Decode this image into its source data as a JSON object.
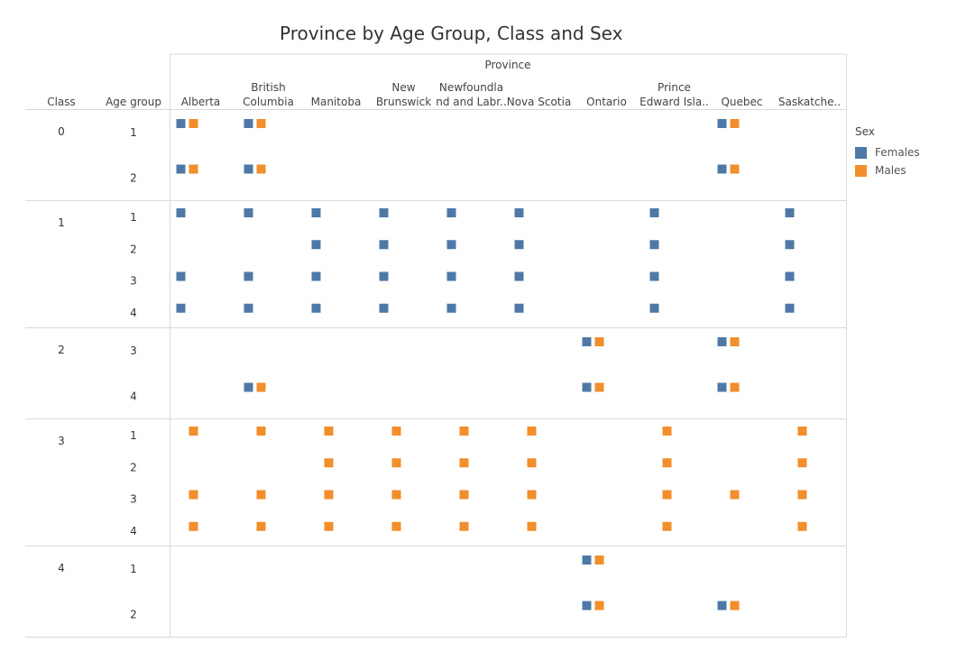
{
  "title": "Province by Age Group, Class and Sex",
  "colors": {
    "Females": "#4e79a7",
    "Males": "#f28e2b"
  },
  "legend": {
    "title": "Sex",
    "items": [
      "Females",
      "Males"
    ]
  },
  "chart_data": {
    "type": "scatter",
    "title": "Province by Age Group, Class and Sex",
    "column_header": "Province",
    "row_headers": [
      "Class",
      "Age group"
    ],
    "provinces": [
      [
        "Alberta"
      ],
      [
        "British",
        "Columbia"
      ],
      [
        "Manitoba"
      ],
      [
        "New",
        "Brunswick"
      ],
      [
        "Newfoundla",
        "nd and Labr.."
      ],
      [
        "Nova Scotia"
      ],
      [
        "Ontario"
      ],
      [
        "Prince",
        "Edward Isla.."
      ],
      [
        "Quebec"
      ],
      [
        "Saskatche.."
      ]
    ],
    "classes": [
      {
        "class": "0",
        "age_groups": [
          "1",
          "2"
        ],
        "points": [
          {
            "age": "1",
            "province": 0,
            "sex": "Females"
          },
          {
            "age": "1",
            "province": 0,
            "sex": "Males"
          },
          {
            "age": "1",
            "province": 1,
            "sex": "Females"
          },
          {
            "age": "1",
            "province": 1,
            "sex": "Males"
          },
          {
            "age": "1",
            "province": 8,
            "sex": "Females"
          },
          {
            "age": "1",
            "province": 8,
            "sex": "Males"
          },
          {
            "age": "2",
            "province": 0,
            "sex": "Females"
          },
          {
            "age": "2",
            "province": 0,
            "sex": "Males"
          },
          {
            "age": "2",
            "province": 1,
            "sex": "Females"
          },
          {
            "age": "2",
            "province": 1,
            "sex": "Males"
          },
          {
            "age": "2",
            "province": 8,
            "sex": "Females"
          },
          {
            "age": "2",
            "province": 8,
            "sex": "Males"
          }
        ]
      },
      {
        "class": "1",
        "age_groups": [
          "1",
          "2",
          "3",
          "4"
        ],
        "points": [
          {
            "age": "1",
            "province": 0,
            "sex": "Females"
          },
          {
            "age": "1",
            "province": 1,
            "sex": "Females"
          },
          {
            "age": "1",
            "province": 2,
            "sex": "Females"
          },
          {
            "age": "1",
            "province": 3,
            "sex": "Females"
          },
          {
            "age": "1",
            "province": 4,
            "sex": "Females"
          },
          {
            "age": "1",
            "province": 5,
            "sex": "Females"
          },
          {
            "age": "1",
            "province": 7,
            "sex": "Females"
          },
          {
            "age": "1",
            "province": 9,
            "sex": "Females"
          },
          {
            "age": "2",
            "province": 2,
            "sex": "Females"
          },
          {
            "age": "2",
            "province": 3,
            "sex": "Females"
          },
          {
            "age": "2",
            "province": 4,
            "sex": "Females"
          },
          {
            "age": "2",
            "province": 5,
            "sex": "Females"
          },
          {
            "age": "2",
            "province": 7,
            "sex": "Females"
          },
          {
            "age": "2",
            "province": 9,
            "sex": "Females"
          },
          {
            "age": "3",
            "province": 0,
            "sex": "Females"
          },
          {
            "age": "3",
            "province": 1,
            "sex": "Females"
          },
          {
            "age": "3",
            "province": 2,
            "sex": "Females"
          },
          {
            "age": "3",
            "province": 3,
            "sex": "Females"
          },
          {
            "age": "3",
            "province": 4,
            "sex": "Females"
          },
          {
            "age": "3",
            "province": 5,
            "sex": "Females"
          },
          {
            "age": "3",
            "province": 7,
            "sex": "Females"
          },
          {
            "age": "3",
            "province": 9,
            "sex": "Females"
          },
          {
            "age": "4",
            "province": 0,
            "sex": "Females"
          },
          {
            "age": "4",
            "province": 1,
            "sex": "Females"
          },
          {
            "age": "4",
            "province": 2,
            "sex": "Females"
          },
          {
            "age": "4",
            "province": 3,
            "sex": "Females"
          },
          {
            "age": "4",
            "province": 4,
            "sex": "Females"
          },
          {
            "age": "4",
            "province": 5,
            "sex": "Females"
          },
          {
            "age": "4",
            "province": 7,
            "sex": "Females"
          },
          {
            "age": "4",
            "province": 9,
            "sex": "Females"
          }
        ]
      },
      {
        "class": "2",
        "age_groups": [
          "3",
          "4"
        ],
        "points": [
          {
            "age": "3",
            "province": 6,
            "sex": "Females"
          },
          {
            "age": "3",
            "province": 6,
            "sex": "Males"
          },
          {
            "age": "3",
            "province": 8,
            "sex": "Females"
          },
          {
            "age": "3",
            "province": 8,
            "sex": "Males"
          },
          {
            "age": "4",
            "province": 1,
            "sex": "Females"
          },
          {
            "age": "4",
            "province": 1,
            "sex": "Males"
          },
          {
            "age": "4",
            "province": 6,
            "sex": "Females"
          },
          {
            "age": "4",
            "province": 6,
            "sex": "Males"
          },
          {
            "age": "4",
            "province": 8,
            "sex": "Females"
          },
          {
            "age": "4",
            "province": 8,
            "sex": "Males"
          }
        ]
      },
      {
        "class": "3",
        "age_groups": [
          "1",
          "2",
          "3",
          "4"
        ],
        "points": [
          {
            "age": "1",
            "province": 0,
            "sex": "Males"
          },
          {
            "age": "1",
            "province": 1,
            "sex": "Males"
          },
          {
            "age": "1",
            "province": 2,
            "sex": "Males"
          },
          {
            "age": "1",
            "province": 3,
            "sex": "Males"
          },
          {
            "age": "1",
            "province": 4,
            "sex": "Males"
          },
          {
            "age": "1",
            "province": 5,
            "sex": "Males"
          },
          {
            "age": "1",
            "province": 7,
            "sex": "Males"
          },
          {
            "age": "1",
            "province": 9,
            "sex": "Males"
          },
          {
            "age": "2",
            "province": 2,
            "sex": "Males"
          },
          {
            "age": "2",
            "province": 3,
            "sex": "Males"
          },
          {
            "age": "2",
            "province": 4,
            "sex": "Males"
          },
          {
            "age": "2",
            "province": 5,
            "sex": "Males"
          },
          {
            "age": "2",
            "province": 7,
            "sex": "Males"
          },
          {
            "age": "2",
            "province": 9,
            "sex": "Males"
          },
          {
            "age": "3",
            "province": 0,
            "sex": "Males"
          },
          {
            "age": "3",
            "province": 1,
            "sex": "Males"
          },
          {
            "age": "3",
            "province": 2,
            "sex": "Males"
          },
          {
            "age": "3",
            "province": 3,
            "sex": "Males"
          },
          {
            "age": "3",
            "province": 4,
            "sex": "Males"
          },
          {
            "age": "3",
            "province": 5,
            "sex": "Males"
          },
          {
            "age": "3",
            "province": 7,
            "sex": "Males"
          },
          {
            "age": "3",
            "province": 8,
            "sex": "Males"
          },
          {
            "age": "3",
            "province": 9,
            "sex": "Males"
          },
          {
            "age": "4",
            "province": 0,
            "sex": "Males"
          },
          {
            "age": "4",
            "province": 1,
            "sex": "Males"
          },
          {
            "age": "4",
            "province": 2,
            "sex": "Males"
          },
          {
            "age": "4",
            "province": 3,
            "sex": "Males"
          },
          {
            "age": "4",
            "province": 4,
            "sex": "Males"
          },
          {
            "age": "4",
            "province": 5,
            "sex": "Males"
          },
          {
            "age": "4",
            "province": 7,
            "sex": "Males"
          },
          {
            "age": "4",
            "province": 9,
            "sex": "Males"
          }
        ]
      },
      {
        "class": "4",
        "age_groups": [
          "1",
          "2"
        ],
        "points": [
          {
            "age": "1",
            "province": 6,
            "sex": "Females"
          },
          {
            "age": "1",
            "province": 6,
            "sex": "Males"
          },
          {
            "age": "2",
            "province": 6,
            "sex": "Females"
          },
          {
            "age": "2",
            "province": 6,
            "sex": "Males"
          },
          {
            "age": "2",
            "province": 8,
            "sex": "Females"
          },
          {
            "age": "2",
            "province": 8,
            "sex": "Males"
          }
        ]
      }
    ]
  }
}
